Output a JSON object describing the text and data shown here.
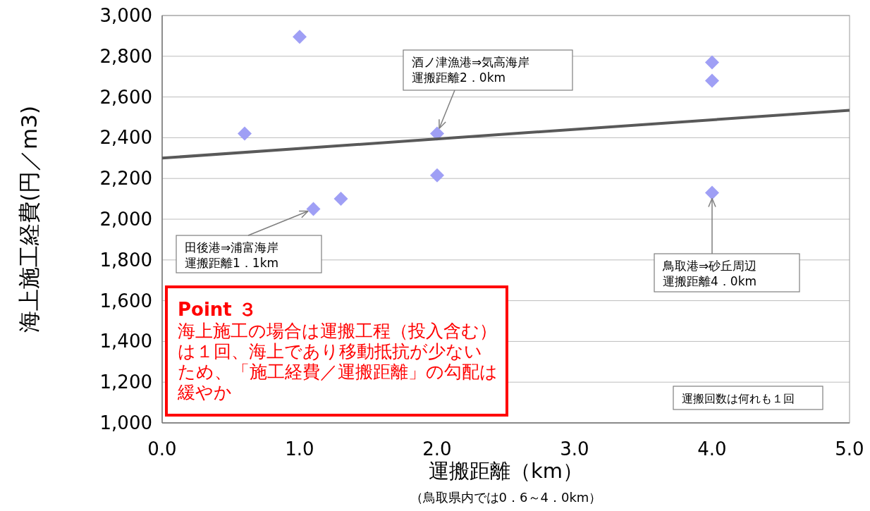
{
  "chart_data": {
    "type": "scatter",
    "xlabel": "運搬距離（km）",
    "ylabel": "海上施工経費(円／m3)",
    "xlim": [
      0,
      5
    ],
    "ylim": [
      1000,
      3000
    ],
    "xticks": [
      {
        "value": 0,
        "label": "0.0"
      },
      {
        "value": 1,
        "label": "1.0"
      },
      {
        "value": 2,
        "label": "2.0"
      },
      {
        "value": 3,
        "label": "3.0"
      },
      {
        "value": 4,
        "label": "4.0"
      },
      {
        "value": 5,
        "label": "5.0"
      }
    ],
    "yticks": [
      {
        "value": 1000,
        "label": "1,000"
      },
      {
        "value": 1200,
        "label": "1,200"
      },
      {
        "value": 1400,
        "label": "1,400"
      },
      {
        "value": 1600,
        "label": "1,600"
      },
      {
        "value": 1800,
        "label": "1,800"
      },
      {
        "value": 2000,
        "label": "2,000"
      },
      {
        "value": 2200,
        "label": "2,200"
      },
      {
        "value": 2400,
        "label": "2,400"
      },
      {
        "value": 2600,
        "label": "2,600"
      },
      {
        "value": 2800,
        "label": "2,800"
      },
      {
        "value": 3000,
        "label": "3,000"
      }
    ],
    "grid": "y",
    "marker": "diamond",
    "series": [
      {
        "color": "#9f9ff5",
        "x": [
          0.6,
          1.0,
          1.1,
          1.3,
          2.0,
          2.0,
          4.0,
          4.0,
          4.0
        ],
        "values": [
          2420,
          2895,
          2050,
          2100,
          2420,
          2215,
          2770,
          2680,
          2130
        ]
      },
      {
        "type": "line",
        "marker": "none",
        "color": "#595959",
        "x": [
          0,
          5
        ],
        "values": [
          2300,
          2535
        ]
      }
    ],
    "annotations": [
      {
        "text": "酒ノ津漁港⇒気高海岸運搬距離2．0km",
        "x": 2.0,
        "y": 2420
      },
      {
        "text": "田後港⇒浦富海岸運搬距離1．1km",
        "x": 1.1,
        "y": 2050
      },
      {
        "text": "鳥取港⇒砂丘周辺運搬距離4．0km",
        "x": 4.0,
        "y": 2130
      },
      "Point ３",
      "海上施工の場合は運搬工程（投入含む）は１回、海上であり移動抵抗が少ないため、「施工経費／運搬距離」の勾配は緩やか",
      "運搬回数は何れも１回",
      "（鳥取県内では0．6～4．0km）"
    ]
  }
}
